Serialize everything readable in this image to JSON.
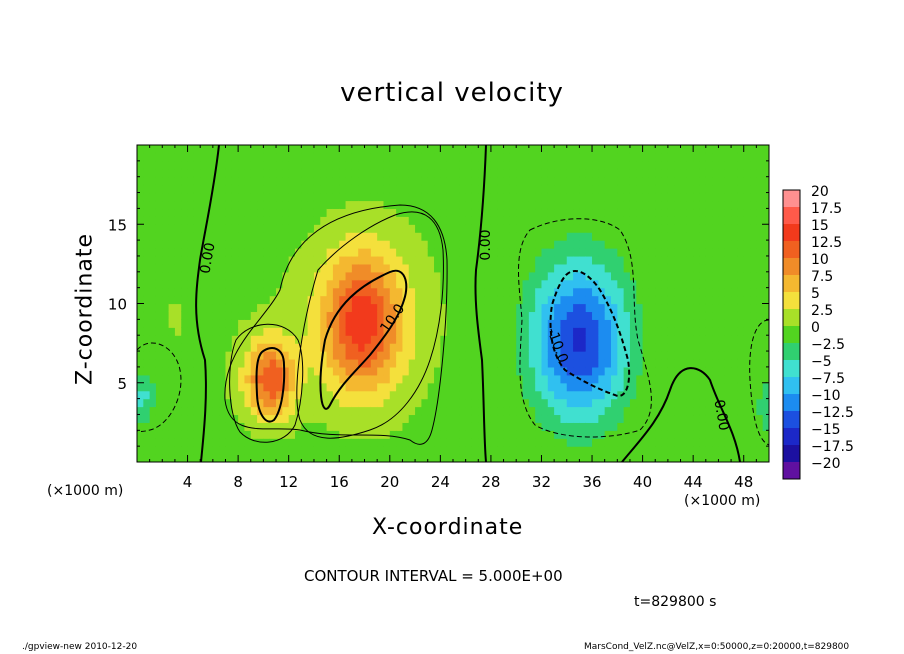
{
  "chart_data": {
    "type": "heatmap",
    "title": "vertical velocity",
    "xlabel": "X-coordinate",
    "ylabel": "Z-coordinate",
    "x_unit_label": "(×1000 m)",
    "z_unit_label": "(×1000 m)",
    "xlim": [
      0,
      50
    ],
    "ylim": [
      0,
      20
    ],
    "x_ticks": [
      4,
      8,
      12,
      16,
      20,
      24,
      28,
      32,
      36,
      40,
      44,
      48
    ],
    "y_ticks": [
      5,
      10,
      15
    ],
    "colorbar": {
      "labels": [
        "20",
        "17.5",
        "15",
        "12.5",
        "10",
        "7.5",
        "5",
        "2.5",
        "0",
        "−2.5",
        "−5",
        "−7.5",
        "−10",
        "−12.5",
        "−15",
        "−17.5",
        "−20"
      ],
      "values": [
        20,
        17.5,
        15,
        12.5,
        10,
        7.5,
        5,
        2.5,
        0,
        -2.5,
        -5,
        -7.5,
        -10,
        -12.5,
        -15,
        -17.5,
        -20
      ],
      "colors": [
        "#ff9090",
        "#ff5a4a",
        "#f23a1c",
        "#f06020",
        "#f08c28",
        "#f4b830",
        "#f4e03c",
        "#a8e028",
        "#52d420",
        "#30d070",
        "#40e0d0",
        "#30c0f0",
        "#1c8cf0",
        "#1c50e0",
        "#1c28c8",
        "#1c10a0",
        "#6010a0"
      ]
    },
    "contour_labels": [
      "0.00",
      "0.00",
      "10.0",
      "-10.0",
      "0.00"
    ],
    "contour_interval_text": "CONTOUR INTERVAL = 5.000E+00",
    "time_label": "t=829800 s",
    "cells": [
      {
        "name": "updraft-lower",
        "x": 10.5,
        "z": 5.2,
        "sx": 1.4,
        "sz": 1.8,
        "w": 12.5
      },
      {
        "name": "updraft-main",
        "x": 17.8,
        "z": 8.8,
        "sx": 2.1,
        "sz": 3.0,
        "w": 12.0
      },
      {
        "name": "updraft-halo",
        "x": 18.0,
        "z": 9.0,
        "sx": 4.5,
        "sz": 4.6,
        "w": 4.0
      },
      {
        "name": "downdraft-main",
        "x": 35.0,
        "z": 7.5,
        "sx": 2.6,
        "sz": 3.4,
        "w": -13.0
      },
      {
        "name": "downdraft-halo",
        "x": 35.0,
        "z": 8.5,
        "sx": 4.0,
        "sz": 5.0,
        "w": -3.5
      },
      {
        "name": "downdraft-left-edge",
        "x": 0.4,
        "z": 4.2,
        "sx": 1.0,
        "sz": 1.5,
        "w": -7.5
      },
      {
        "name": "downdraft-right-edge",
        "x": 49.8,
        "z": 3.5,
        "sx": 0.8,
        "sz": 1.5,
        "w": -5.0
      },
      {
        "name": "weak-up-left",
        "x": 3.0,
        "z": 9.0,
        "sx": 4.0,
        "sz": 7.0,
        "w": 1.5
      }
    ]
  },
  "footer": {
    "left": "./gpview-new  2010-12-20",
    "right": "MarsCond_VelZ.nc@VelZ,x=0:50000,z=0:20000,t=829800"
  }
}
